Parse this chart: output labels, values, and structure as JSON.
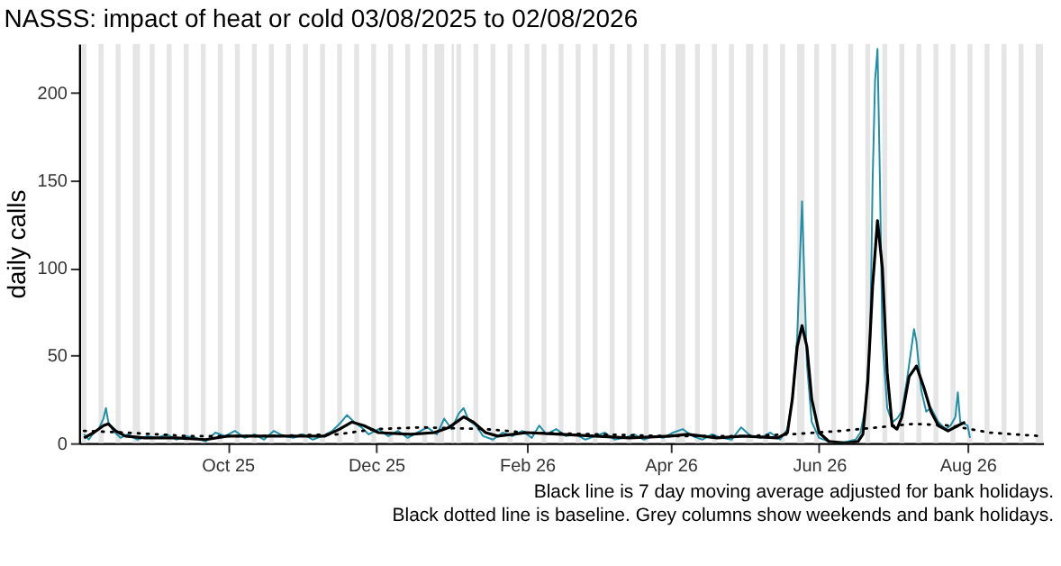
{
  "chart_data": {
    "type": "line",
    "title": "NASSS: impact of heat or cold 03/08/2025 to 02/08/2026",
    "ylabel": "daily calls",
    "annotations": [
      "Black line is 7 day moving average adjusted for bank holidays.",
      "Black dotted line is baseline. Grey columns show weekends and bank holidays."
    ],
    "xlim": [
      "2025-08-01",
      "2026-09-01"
    ],
    "xticks": [
      {
        "value": "2025-10-01",
        "label": "Oct 25"
      },
      {
        "value": "2025-12-01",
        "label": "Dec 25"
      },
      {
        "value": "2026-02-01",
        "label": "Feb 26"
      },
      {
        "value": "2026-04-01",
        "label": "Apr 26"
      },
      {
        "value": "2026-06-01",
        "label": "Jun 26"
      },
      {
        "value": "2026-08-01",
        "label": "Aug 26"
      }
    ],
    "ylim": [
      0,
      228
    ],
    "yticks": [
      0,
      50,
      100,
      150,
      200
    ],
    "grid": false,
    "series": [
      {
        "color": "#2090a8",
        "line_style": "solid",
        "x": [
          "2025-08-03",
          "2025-08-05",
          "2025-08-07",
          "2025-08-09",
          "2025-08-11",
          "2025-08-12",
          "2025-08-13",
          "2025-08-15",
          "2025-08-18",
          "2025-08-21",
          "2025-08-25",
          "2025-08-29",
          "2025-09-02",
          "2025-09-06",
          "2025-09-10",
          "2025-09-14",
          "2025-09-18",
          "2025-09-22",
          "2025-09-26",
          "2025-09-30",
          "2025-10-04",
          "2025-10-08",
          "2025-10-12",
          "2025-10-16",
          "2025-10-20",
          "2025-10-24",
          "2025-10-28",
          "2025-11-01",
          "2025-11-05",
          "2025-11-09",
          "2025-11-13",
          "2025-11-16",
          "2025-11-19",
          "2025-11-22",
          "2025-11-25",
          "2025-11-28",
          "2025-12-02",
          "2025-12-06",
          "2025-12-10",
          "2025-12-14",
          "2025-12-18",
          "2025-12-22",
          "2025-12-26",
          "2025-12-29",
          "2026-01-01",
          "2026-01-04",
          "2026-01-06",
          "2026-01-08",
          "2026-01-11",
          "2026-01-14",
          "2026-01-18",
          "2026-01-22",
          "2026-01-26",
          "2026-01-30",
          "2026-02-03",
          "2026-02-06",
          "2026-02-09",
          "2026-02-13",
          "2026-02-17",
          "2026-02-21",
          "2026-02-25",
          "2026-03-01",
          "2026-03-05",
          "2026-03-09",
          "2026-03-13",
          "2026-03-17",
          "2026-03-21",
          "2026-03-25",
          "2026-03-29",
          "2026-04-02",
          "2026-04-06",
          "2026-04-10",
          "2026-04-14",
          "2026-04-18",
          "2026-04-22",
          "2026-04-26",
          "2026-04-30",
          "2026-05-04",
          "2026-05-08",
          "2026-05-12",
          "2026-05-16",
          "2026-05-19",
          "2026-05-21",
          "2026-05-23",
          "2026-05-24",
          "2026-05-25",
          "2026-05-26",
          "2026-05-27",
          "2026-05-29",
          "2026-06-01",
          "2026-06-05",
          "2026-06-09",
          "2026-06-13",
          "2026-06-16",
          "2026-06-18",
          "2026-06-20",
          "2026-06-22",
          "2026-06-23",
          "2026-06-24",
          "2026-06-25",
          "2026-06-26",
          "2026-06-27",
          "2026-06-29",
          "2026-07-01",
          "2026-07-03",
          "2026-07-05",
          "2026-07-07",
          "2026-07-09",
          "2026-07-10",
          "2026-07-11",
          "2026-07-13",
          "2026-07-15",
          "2026-07-17",
          "2026-07-20",
          "2026-07-23",
          "2026-07-25",
          "2026-07-27",
          "2026-07-28",
          "2026-07-29",
          "2026-08-01",
          "2026-08-02"
        ],
        "values": [
          5,
          2,
          6,
          8,
          14,
          20,
          12,
          7,
          3,
          5,
          2,
          4,
          3,
          5,
          2,
          4,
          3,
          1,
          6,
          4,
          7,
          3,
          5,
          2,
          7,
          4,
          3,
          5,
          2,
          4,
          7,
          11,
          16,
          12,
          9,
          5,
          8,
          4,
          7,
          3,
          6,
          9,
          5,
          14,
          8,
          17,
          20,
          13,
          10,
          4,
          2,
          6,
          4,
          7,
          3,
          10,
          5,
          8,
          4,
          5,
          2,
          4,
          6,
          2,
          3,
          5,
          2,
          4,
          3,
          6,
          8,
          4,
          2,
          5,
          3,
          2,
          9,
          4,
          3,
          6,
          2,
          8,
          25,
          60,
          100,
          138,
          90,
          45,
          12,
          3,
          1,
          0,
          1,
          2,
          6,
          20,
          60,
          150,
          207,
          225,
          150,
          60,
          20,
          12,
          14,
          18,
          35,
          55,
          65,
          58,
          30,
          18,
          20,
          12,
          8,
          10,
          15,
          29,
          12,
          10,
          3
        ]
      },
      {
        "color": "#000000",
        "line_style": "solid",
        "x": [
          "2025-08-03",
          "2025-08-07",
          "2025-08-11",
          "2025-08-13",
          "2025-08-16",
          "2025-08-20",
          "2025-08-28",
          "2025-09-10",
          "2025-09-22",
          "2025-10-01",
          "2025-10-15",
          "2025-11-01",
          "2025-11-10",
          "2025-11-16",
          "2025-11-21",
          "2025-11-26",
          "2025-12-02",
          "2025-12-15",
          "2025-12-25",
          "2025-12-31",
          "2026-01-06",
          "2026-01-10",
          "2026-01-15",
          "2026-01-20",
          "2026-02-01",
          "2026-02-15",
          "2026-03-01",
          "2026-03-15",
          "2026-04-01",
          "2026-04-08",
          "2026-04-20",
          "2026-05-01",
          "2026-05-15",
          "2026-05-19",
          "2026-05-21",
          "2026-05-23",
          "2026-05-25",
          "2026-05-27",
          "2026-05-29",
          "2026-06-01",
          "2026-06-05",
          "2026-06-12",
          "2026-06-17",
          "2026-06-19",
          "2026-06-21",
          "2026-06-23",
          "2026-06-25",
          "2026-06-27",
          "2026-06-29",
          "2026-07-01",
          "2026-07-03",
          "2026-07-05",
          "2026-07-08",
          "2026-07-11",
          "2026-07-14",
          "2026-07-17",
          "2026-07-20",
          "2026-07-24",
          "2026-07-28",
          "2026-07-31"
        ],
        "values": [
          3,
          6,
          10,
          11,
          7,
          4,
          3,
          3,
          2,
          4,
          4,
          4,
          4,
          8,
          12,
          10,
          6,
          5,
          6,
          9,
          15,
          12,
          6,
          4,
          6,
          5,
          4,
          3,
          4,
          5,
          3,
          4,
          3,
          6,
          25,
          55,
          67,
          55,
          25,
          6,
          1,
          0,
          1,
          5,
          35,
          90,
          127,
          100,
          40,
          10,
          8,
          15,
          38,
          44,
          32,
          18,
          10,
          7,
          10,
          12
        ]
      },
      {
        "color": "#000000",
        "line_style": "dotted",
        "x": [
          "2025-08-03",
          "2025-08-20",
          "2025-09-15",
          "2025-10-15",
          "2025-11-15",
          "2025-12-01",
          "2025-12-20",
          "2026-01-15",
          "2026-02-01",
          "2026-03-01",
          "2026-04-01",
          "2026-05-01",
          "2026-05-20",
          "2026-06-10",
          "2026-06-25",
          "2026-07-10",
          "2026-07-25",
          "2026-08-10",
          "2026-08-31"
        ],
        "values": [
          7,
          6,
          4,
          4,
          5,
          8,
          9,
          8,
          6,
          5,
          4,
          4,
          5,
          7,
          9,
          11,
          10,
          6,
          4
        ]
      }
    ],
    "bands": [
      {
        "axis": "x",
        "from": "2025-08-02",
        "to": "2025-08-04",
        "color": "#e5e5e5"
      },
      {
        "axis": "x",
        "from": "2025-08-09",
        "to": "2025-08-11",
        "color": "#e5e5e5"
      },
      {
        "axis": "x",
        "from": "2025-08-16",
        "to": "2025-08-18",
        "color": "#e5e5e5"
      },
      {
        "axis": "x",
        "from": "2025-08-23",
        "to": "2025-08-26",
        "color": "#e5e5e5"
      },
      {
        "axis": "x",
        "from": "2025-08-30",
        "to": "2025-09-01",
        "color": "#e5e5e5"
      },
      {
        "axis": "x",
        "from": "2025-09-06",
        "to": "2025-09-08",
        "color": "#e5e5e5"
      },
      {
        "axis": "x",
        "from": "2025-09-13",
        "to": "2025-09-15",
        "color": "#e5e5e5"
      },
      {
        "axis": "x",
        "from": "2025-09-20",
        "to": "2025-09-22",
        "color": "#e5e5e5"
      },
      {
        "axis": "x",
        "from": "2025-09-27",
        "to": "2025-09-29",
        "color": "#e5e5e5"
      },
      {
        "axis": "x",
        "from": "2025-10-04",
        "to": "2025-10-06",
        "color": "#e5e5e5"
      },
      {
        "axis": "x",
        "from": "2025-10-11",
        "to": "2025-10-13",
        "color": "#e5e5e5"
      },
      {
        "axis": "x",
        "from": "2025-10-18",
        "to": "2025-10-20",
        "color": "#e5e5e5"
      },
      {
        "axis": "x",
        "from": "2025-10-25",
        "to": "2025-10-27",
        "color": "#e5e5e5"
      },
      {
        "axis": "x",
        "from": "2025-11-01",
        "to": "2025-11-03",
        "color": "#e5e5e5"
      },
      {
        "axis": "x",
        "from": "2025-11-08",
        "to": "2025-11-10",
        "color": "#e5e5e5"
      },
      {
        "axis": "x",
        "from": "2025-11-15",
        "to": "2025-11-17",
        "color": "#e5e5e5"
      },
      {
        "axis": "x",
        "from": "2025-11-22",
        "to": "2025-11-24",
        "color": "#e5e5e5"
      },
      {
        "axis": "x",
        "from": "2025-11-29",
        "to": "2025-12-01",
        "color": "#e5e5e5"
      },
      {
        "axis": "x",
        "from": "2025-12-06",
        "to": "2025-12-08",
        "color": "#e5e5e5"
      },
      {
        "axis": "x",
        "from": "2025-12-13",
        "to": "2025-12-15",
        "color": "#e5e5e5"
      },
      {
        "axis": "x",
        "from": "2025-12-20",
        "to": "2025-12-22",
        "color": "#e5e5e5"
      },
      {
        "axis": "x",
        "from": "2025-12-25",
        "to": "2025-12-29",
        "color": "#e5e5e5"
      },
      {
        "axis": "x",
        "from": "2026-01-01",
        "to": "2026-01-02",
        "color": "#e5e5e5"
      },
      {
        "axis": "x",
        "from": "2026-01-03",
        "to": "2026-01-05",
        "color": "#e5e5e5"
      },
      {
        "axis": "x",
        "from": "2026-01-10",
        "to": "2026-01-12",
        "color": "#e5e5e5"
      },
      {
        "axis": "x",
        "from": "2026-01-17",
        "to": "2026-01-19",
        "color": "#e5e5e5"
      },
      {
        "axis": "x",
        "from": "2026-01-24",
        "to": "2026-01-26",
        "color": "#e5e5e5"
      },
      {
        "axis": "x",
        "from": "2026-01-31",
        "to": "2026-02-02",
        "color": "#e5e5e5"
      },
      {
        "axis": "x",
        "from": "2026-02-07",
        "to": "2026-02-09",
        "color": "#e5e5e5"
      },
      {
        "axis": "x",
        "from": "2026-02-14",
        "to": "2026-02-16",
        "color": "#e5e5e5"
      },
      {
        "axis": "x",
        "from": "2026-02-21",
        "to": "2026-02-23",
        "color": "#e5e5e5"
      },
      {
        "axis": "x",
        "from": "2026-02-28",
        "to": "2026-03-02",
        "color": "#e5e5e5"
      },
      {
        "axis": "x",
        "from": "2026-03-07",
        "to": "2026-03-09",
        "color": "#e5e5e5"
      },
      {
        "axis": "x",
        "from": "2026-03-14",
        "to": "2026-03-16",
        "color": "#e5e5e5"
      },
      {
        "axis": "x",
        "from": "2026-03-21",
        "to": "2026-03-23",
        "color": "#e5e5e5"
      },
      {
        "axis": "x",
        "from": "2026-03-28",
        "to": "2026-03-30",
        "color": "#e5e5e5"
      },
      {
        "axis": "x",
        "from": "2026-04-03",
        "to": "2026-04-07",
        "color": "#e5e5e5"
      },
      {
        "axis": "x",
        "from": "2026-04-11",
        "to": "2026-04-13",
        "color": "#e5e5e5"
      },
      {
        "axis": "x",
        "from": "2026-04-18",
        "to": "2026-04-20",
        "color": "#e5e5e5"
      },
      {
        "axis": "x",
        "from": "2026-04-25",
        "to": "2026-04-27",
        "color": "#e5e5e5"
      },
      {
        "axis": "x",
        "from": "2026-05-02",
        "to": "2026-05-05",
        "color": "#e5e5e5"
      },
      {
        "axis": "x",
        "from": "2026-05-09",
        "to": "2026-05-11",
        "color": "#e5e5e5"
      },
      {
        "axis": "x",
        "from": "2026-05-16",
        "to": "2026-05-18",
        "color": "#e5e5e5"
      },
      {
        "axis": "x",
        "from": "2026-05-23",
        "to": "2026-05-26",
        "color": "#e5e5e5"
      },
      {
        "axis": "x",
        "from": "2026-05-30",
        "to": "2026-06-01",
        "color": "#e5e5e5"
      },
      {
        "axis": "x",
        "from": "2026-06-06",
        "to": "2026-06-08",
        "color": "#e5e5e5"
      },
      {
        "axis": "x",
        "from": "2026-06-13",
        "to": "2026-06-15",
        "color": "#e5e5e5"
      },
      {
        "axis": "x",
        "from": "2026-06-20",
        "to": "2026-06-22",
        "color": "#e5e5e5"
      },
      {
        "axis": "x",
        "from": "2026-06-27",
        "to": "2026-06-29",
        "color": "#e5e5e5"
      },
      {
        "axis": "x",
        "from": "2026-07-04",
        "to": "2026-07-06",
        "color": "#e5e5e5"
      },
      {
        "axis": "x",
        "from": "2026-07-11",
        "to": "2026-07-13",
        "color": "#e5e5e5"
      },
      {
        "axis": "x",
        "from": "2026-07-18",
        "to": "2026-07-20",
        "color": "#e5e5e5"
      },
      {
        "axis": "x",
        "from": "2026-07-25",
        "to": "2026-07-27",
        "color": "#e5e5e5"
      },
      {
        "axis": "x",
        "from": "2026-08-01",
        "to": "2026-08-03",
        "color": "#e5e5e5"
      },
      {
        "axis": "x",
        "from": "2026-08-08",
        "to": "2026-08-10",
        "color": "#e5e5e5"
      },
      {
        "axis": "x",
        "from": "2026-08-15",
        "to": "2026-08-17",
        "color": "#e5e5e5"
      },
      {
        "axis": "x",
        "from": "2026-08-22",
        "to": "2026-08-24",
        "color": "#e5e5e5"
      },
      {
        "axis": "x",
        "from": "2026-08-29",
        "to": "2026-09-01",
        "color": "#e5e5e5"
      }
    ]
  }
}
